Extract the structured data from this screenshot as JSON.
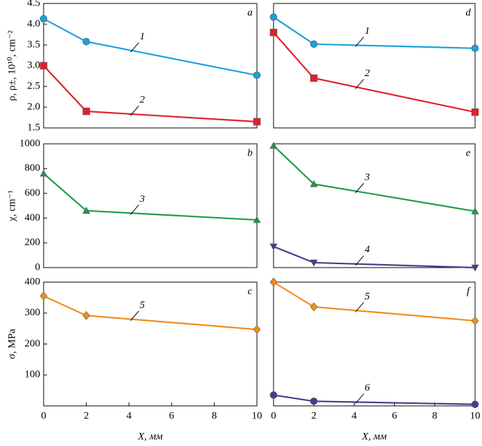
{
  "chart_data": [
    {
      "type": "line",
      "title": "a",
      "ylabel": "ρ, ρ±, 10¹⁰, cm⁻²",
      "x": [
        0,
        2,
        10
      ],
      "xlim": [
        0,
        10
      ],
      "ylim": [
        1.5,
        4.5
      ],
      "yticks": [
        1.5,
        {
          "value": 2,
          "label": "2.0"
        },
        2.5,
        {
          "value": 3,
          "label": "3.0"
        },
        3.5,
        {
          "value": 4,
          "label": "4.0"
        },
        4.5
      ],
      "series": [
        {
          "name": "1",
          "color": "#1ca0dc",
          "marker": "circle",
          "values": [
            4.13,
            3.58,
            2.77
          ]
        },
        {
          "name": "2",
          "color": "#e0202a",
          "marker": "square",
          "values": [
            3.0,
            1.9,
            1.65
          ]
        }
      ]
    },
    {
      "type": "line",
      "title": "d",
      "x": [
        0,
        2,
        10
      ],
      "xlim": [
        0,
        10
      ],
      "ylim": [
        1.5,
        4.5
      ],
      "series": [
        {
          "name": "1",
          "color": "#1ca0dc",
          "marker": "circle",
          "values": [
            4.17,
            3.52,
            3.42
          ]
        },
        {
          "name": "2",
          "color": "#e0202a",
          "marker": "square",
          "values": [
            3.8,
            2.7,
            1.88
          ]
        }
      ]
    },
    {
      "type": "line",
      "title": "b",
      "ylabel": "χ, cm⁻¹",
      "x": [
        0,
        2,
        10
      ],
      "xlim": [
        0,
        10
      ],
      "ylim": [
        0,
        1000
      ],
      "yticks": [
        0,
        200,
        400,
        600,
        800,
        1000
      ],
      "series": [
        {
          "name": "3",
          "color": "#1e9a48",
          "marker": "triangle",
          "values": [
            760,
            460,
            385
          ]
        }
      ]
    },
    {
      "type": "line",
      "title": "e",
      "x": [
        0,
        2,
        10
      ],
      "xlim": [
        0,
        10
      ],
      "ylim": [
        0,
        1000
      ],
      "series": [
        {
          "name": "3",
          "color": "#1e9a48",
          "marker": "triangle",
          "values": [
            985,
            675,
            455
          ]
        },
        {
          "name": "4",
          "color": "#4b3a8f",
          "marker": "triangle-down",
          "values": [
            170,
            40,
            0
          ]
        }
      ]
    },
    {
      "type": "line",
      "title": "c",
      "ylabel": "σ, MPa",
      "xlabel": "X, мм",
      "x": [
        0,
        2,
        10
      ],
      "xlim": [
        0,
        10
      ],
      "ylim": [
        0,
        400
      ],
      "xticks": [
        0,
        2,
        4,
        6,
        8,
        10
      ],
      "yticks": [
        100,
        200,
        300,
        400
      ],
      "series": [
        {
          "name": "5",
          "color": "#f28c1c",
          "marker": "diamond",
          "values": [
            355,
            292,
            247
          ]
        }
      ]
    },
    {
      "type": "line",
      "title": "f",
      "xlabel": "X, мм",
      "x": [
        0,
        2,
        10
      ],
      "xlim": [
        0,
        10
      ],
      "ylim": [
        0,
        400
      ],
      "xticks": [
        0,
        2,
        4,
        6,
        8,
        10
      ],
      "series": [
        {
          "name": "5",
          "color": "#f28c1c",
          "marker": "diamond",
          "values": [
            400,
            320,
            275
          ]
        },
        {
          "name": "6",
          "color": "#4b3a8f",
          "marker": "circle",
          "values": [
            35,
            15,
            5
          ]
        }
      ]
    }
  ]
}
